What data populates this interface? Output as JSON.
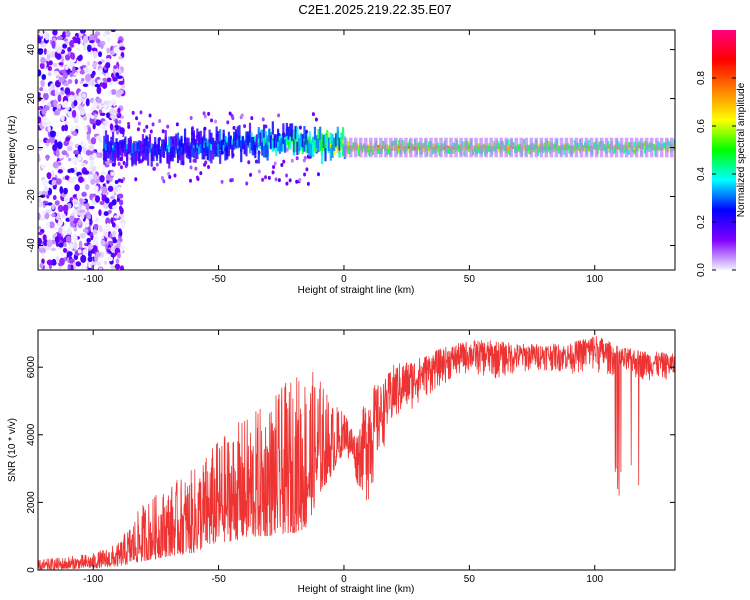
{
  "title": "C2E1.2025.219.22.35.E07",
  "chart_data": [
    {
      "type": "heatmap",
      "xlabel": "Height of straight line (km)",
      "ylabel": "Frequency (Hz)",
      "xlim": [
        -122,
        132
      ],
      "ylim": [
        -50,
        48
      ],
      "xticks": [
        -100,
        -50,
        0,
        50,
        100
      ],
      "xtick_labels": [
        "-100",
        "-50",
        "0",
        "50",
        "100"
      ],
      "yticks": [
        -40,
        -20,
        0,
        20,
        40
      ],
      "ytick_labels": [
        "-40",
        "-20",
        "0",
        "20",
        "40"
      ],
      "colorbar": {
        "label": "Normalized spectral amplitude",
        "range": [
          0,
          1
        ],
        "ticks": [
          0.0,
          0.2,
          0.4,
          0.6,
          0.8
        ],
        "tick_labels": [
          "0.0",
          "0.2",
          "0.4",
          "0.6",
          "0.8"
        ],
        "colors": [
          "#f2f2ff",
          "#8000ff",
          "#0000ff",
          "#00ffff",
          "#00ff00",
          "#ffff00",
          "#ff8000",
          "#ff0000",
          "#ff0080"
        ]
      },
      "ridge": {
        "x": [
          -95,
          -80,
          -60,
          -40,
          -20,
          0,
          20,
          40,
          60,
          80,
          100,
          132
        ],
        "center_hz": [
          0,
          -1,
          0,
          2,
          3,
          0,
          0,
          0,
          0,
          0,
          0,
          0
        ],
        "max_amplitude": [
          0.45,
          0.45,
          0.5,
          0.55,
          0.7,
          0.95,
          0.95,
          0.9,
          0.9,
          0.9,
          0.85,
          0.85
        ]
      }
    },
    {
      "type": "line",
      "xlabel": "Height of straight line (km)",
      "ylabel": "SNR (10 * v/v)",
      "xlim": [
        -122,
        132
      ],
      "ylim": [
        0,
        7100
      ],
      "xticks": [
        -100,
        -50,
        0,
        50,
        100
      ],
      "xtick_labels": [
        "-100",
        "-50",
        "0",
        "50",
        "100"
      ],
      "yticks": [
        0,
        2000,
        4000,
        6000
      ],
      "ytick_labels": [
        "0",
        "2000",
        "4000",
        "6000"
      ],
      "color": "#ee3333",
      "envelope": {
        "x": [
          -122,
          -100,
          -90,
          -80,
          -70,
          -60,
          -50,
          -40,
          -30,
          -20,
          -15,
          -10,
          -5,
          0,
          5,
          10,
          15,
          20,
          30,
          40,
          50,
          60,
          70,
          80,
          90,
          100,
          110,
          120,
          132
        ],
        "low": [
          0,
          50,
          100,
          250,
          400,
          500,
          800,
          900,
          1000,
          1100,
          1200,
          2200,
          2800,
          3500,
          2500,
          1800,
          3500,
          4200,
          4900,
          5500,
          5800,
          5600,
          5800,
          5900,
          5800,
          5800,
          5700,
          5600,
          5600
        ],
        "high": [
          300,
          500,
          800,
          2000,
          2500,
          3000,
          3900,
          4500,
          5000,
          5800,
          6000,
          5800,
          5000,
          4700,
          4000,
          5500,
          5500,
          6100,
          6300,
          6600,
          6800,
          6800,
          6700,
          6700,
          6700,
          7000,
          6600,
          6500,
          6400
        ]
      },
      "dropouts": {
        "x_range": [
          98,
          131
        ],
        "min_values": [
          2500,
          2800,
          3200,
          2400,
          3000,
          2700,
          3300,
          2600,
          2300,
          3100,
          2800,
          3400,
          2500,
          2900,
          2200
        ]
      }
    }
  ]
}
